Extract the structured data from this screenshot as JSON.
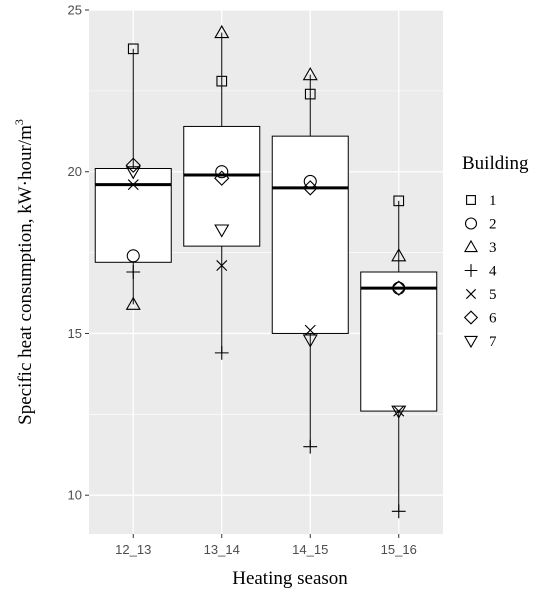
{
  "chart_data": {
    "type": "boxplot",
    "xlabel": "Heating season",
    "ylabel": "Specific heat consumption, kW·hour/m",
    "ylabel_superscript": "3",
    "ylim": [
      8.8,
      25
    ],
    "yticks": [
      10,
      15,
      20,
      25
    ],
    "categories": [
      "12_13",
      "13_14",
      "14_15",
      "15_16"
    ],
    "boxes": [
      {
        "category": "12_13",
        "min": 15.9,
        "q1": 17.2,
        "median": 19.6,
        "q3": 20.1,
        "max": 23.8
      },
      {
        "category": "13_14",
        "min": 14.4,
        "q1": 17.7,
        "median": 19.9,
        "q3": 21.4,
        "max": 24.3
      },
      {
        "category": "14_15",
        "min": 11.5,
        "q1": 15.0,
        "median": 19.5,
        "q3": 21.1,
        "max": 23.0
      },
      {
        "category": "15_16",
        "min": 9.5,
        "q1": 12.6,
        "median": 16.4,
        "q3": 16.9,
        "max": 19.1
      }
    ],
    "legend": {
      "title": "Building",
      "position": "right",
      "entries": [
        {
          "label": "1",
          "shape": "square"
        },
        {
          "label": "2",
          "shape": "circle"
        },
        {
          "label": "3",
          "shape": "triangle-up"
        },
        {
          "label": "4",
          "shape": "plus"
        },
        {
          "label": "5",
          "shape": "cross"
        },
        {
          "label": "6",
          "shape": "diamond"
        },
        {
          "label": "7",
          "shape": "triangle-down"
        }
      ]
    },
    "series": [
      {
        "name": "1",
        "shape": "square",
        "values": [
          23.8,
          22.8,
          22.4,
          19.1
        ]
      },
      {
        "name": "2",
        "shape": "circle",
        "values": [
          17.4,
          20.0,
          19.7,
          16.4
        ]
      },
      {
        "name": "3",
        "shape": "triangle-up",
        "values": [
          15.9,
          24.3,
          23.0,
          17.4
        ]
      },
      {
        "name": "4",
        "shape": "plus",
        "values": [
          16.9,
          14.4,
          11.5,
          9.5
        ]
      },
      {
        "name": "5",
        "shape": "cross",
        "values": [
          19.6,
          17.1,
          15.1,
          12.6
        ]
      },
      {
        "name": "6",
        "shape": "diamond",
        "values": [
          20.2,
          19.8,
          19.5,
          16.4
        ]
      },
      {
        "name": "7",
        "shape": "triangle-down",
        "values": [
          20.0,
          18.2,
          14.8,
          12.6
        ]
      }
    ],
    "grid": true,
    "colors": {
      "panel_background": "#ebebeb",
      "grid_major": "#ffffff",
      "box_fill": "#ffffff",
      "stroke": "#000000",
      "tick_text": "#4d4d4d"
    }
  }
}
